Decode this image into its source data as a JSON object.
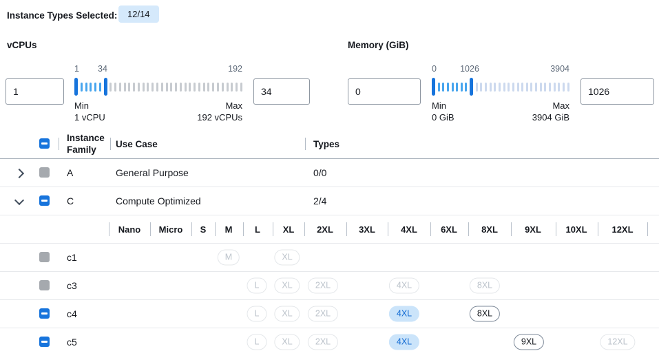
{
  "header": {
    "selected_label": "Instance Types Selected:",
    "selected_badge": "12/14"
  },
  "filters": {
    "vcpus": {
      "title": "vCPUs",
      "from": "1",
      "to": "34",
      "scale_min": "1",
      "scale_current": "34",
      "scale_max": "192",
      "min_label": "Min",
      "min_value": "1 vCPU",
      "max_label": "Max",
      "max_value": "192 vCPUs"
    },
    "memory": {
      "title": "Memory (GiB)",
      "from": "0",
      "to": "1026",
      "scale_min": "0",
      "scale_current": "1026",
      "scale_max": "3904",
      "min_label": "Min",
      "min_value": "0 GiB",
      "max_label": "Max",
      "max_value": "3904 GiB"
    }
  },
  "table": {
    "select_all_state": "indeterminate",
    "headers": {
      "family": "Instance Family",
      "use_case": "Use Case",
      "types": "Types"
    },
    "size_columns": [
      "Nano",
      "Micro",
      "S",
      "M",
      "L",
      "XL",
      "2XL",
      "3XL",
      "4XL",
      "6XL",
      "8XL",
      "9XL",
      "10XL",
      "12XL"
    ],
    "rows": [
      {
        "kind": "family",
        "name": "A",
        "use_case": "General Purpose",
        "types": "0/0",
        "chevron": "right",
        "checkbox": "disabled"
      },
      {
        "kind": "family",
        "name": "C",
        "use_case": "Compute Optimized",
        "types": "2/4",
        "chevron": "down",
        "checkbox": "indeterminate"
      },
      {
        "kind": "size-header"
      },
      {
        "kind": "instance",
        "name": "c1",
        "checkbox": "disabled",
        "sizes": [
          {
            "col": "M",
            "state": "disabled"
          },
          {
            "col": "XL",
            "state": "disabled"
          }
        ]
      },
      {
        "kind": "instance",
        "name": "c3",
        "checkbox": "disabled",
        "sizes": [
          {
            "col": "L",
            "state": "disabled"
          },
          {
            "col": "XL",
            "state": "disabled"
          },
          {
            "col": "2XL",
            "state": "disabled"
          },
          {
            "col": "4XL",
            "state": "disabled"
          },
          {
            "col": "8XL",
            "state": "disabled"
          }
        ]
      },
      {
        "kind": "instance",
        "name": "c4",
        "checkbox": "indeterminate",
        "sizes": [
          {
            "col": "L",
            "state": "disabled"
          },
          {
            "col": "XL",
            "state": "disabled"
          },
          {
            "col": "2XL",
            "state": "disabled"
          },
          {
            "col": "4XL",
            "state": "selected"
          },
          {
            "col": "8XL",
            "state": "enabled"
          }
        ]
      },
      {
        "kind": "instance",
        "name": "c5",
        "checkbox": "indeterminate",
        "sizes": [
          {
            "col": "L",
            "state": "disabled"
          },
          {
            "col": "XL",
            "state": "disabled"
          },
          {
            "col": "2XL",
            "state": "disabled"
          },
          {
            "col": "4XL",
            "state": "selected"
          },
          {
            "col": "9XL",
            "state": "enabled"
          },
          {
            "col": "12XL",
            "state": "disabled"
          }
        ]
      }
    ]
  },
  "colors": {
    "accent_blue": "#1774dc",
    "badge_background": "#d5e9fb",
    "slider_tick_active": "#47a5ee",
    "slider_tick_inactive_vcpus": "#c7cbd0",
    "slider_tick_inactive_memory": "#ccd9ee",
    "selected_pill_background": "#cbe4fa",
    "selected_pill_text": "#136bd3",
    "disabled_checkbox": "#a5a9ae"
  }
}
